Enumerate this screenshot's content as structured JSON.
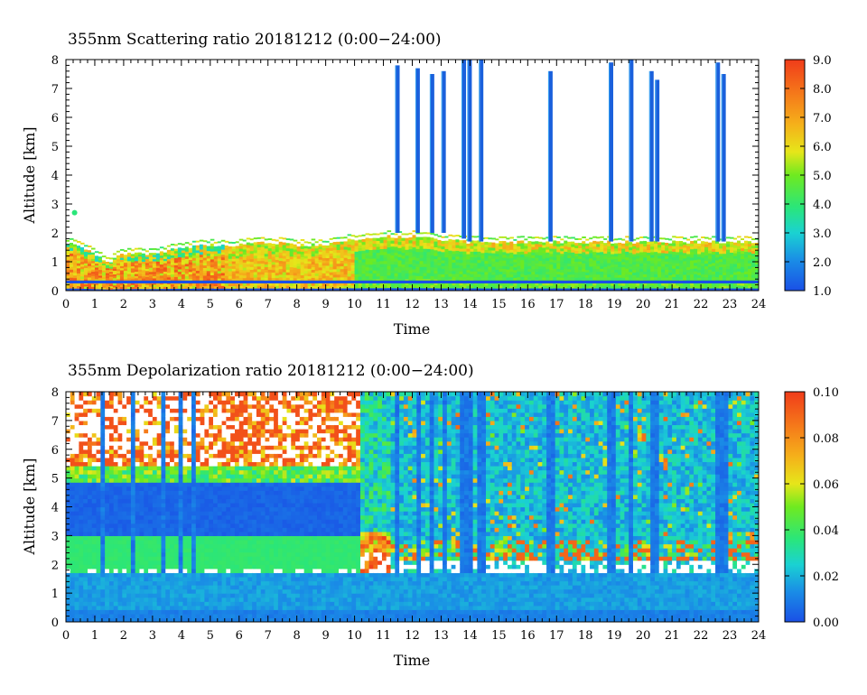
{
  "chart_data": [
    {
      "type": "heatmap",
      "title": "355nm Scattering ratio  20181212 (0:00−24:00)",
      "xlabel": "Time",
      "ylabel": "Altitude [km]",
      "xlim": [
        0,
        24
      ],
      "ylim": [
        0,
        8
      ],
      "x_ticks": [
        "0",
        "1",
        "2",
        "3",
        "4",
        "5",
        "6",
        "7",
        "8",
        "9",
        "10",
        "11",
        "12",
        "13",
        "14",
        "15",
        "16",
        "17",
        "18",
        "19",
        "20",
        "21",
        "22",
        "23",
        "24"
      ],
      "y_ticks": [
        "0",
        "1",
        "2",
        "3",
        "4",
        "5",
        "6",
        "7",
        "8"
      ],
      "colorbar": {
        "min": 1.0,
        "max": 9.0,
        "ticks": [
          "1.0",
          "2.0",
          "3.0",
          "4.0",
          "5.0",
          "6.0",
          "7.0",
          "8.0",
          "9.0"
        ]
      },
      "features": {
        "boundary_layer_top_km": [
          [
            0,
            1.7
          ],
          [
            1,
            1.3
          ],
          [
            1.5,
            1.0
          ],
          [
            2,
            1.3
          ],
          [
            3,
            1.3
          ],
          [
            4,
            1.5
          ],
          [
            5,
            1.6
          ],
          [
            6,
            1.6
          ],
          [
            7,
            1.7
          ],
          [
            8,
            1.6
          ],
          [
            9,
            1.6
          ],
          [
            10,
            1.8
          ],
          [
            11,
            1.9
          ],
          [
            12,
            1.9
          ],
          [
            13,
            1.8
          ],
          [
            14,
            1.7
          ],
          [
            15,
            1.7
          ],
          [
            16,
            1.7
          ],
          [
            17,
            1.7
          ],
          [
            18,
            1.7
          ],
          [
            19,
            1.7
          ],
          [
            20,
            1.7
          ],
          [
            21,
            1.7
          ],
          [
            22,
            1.7
          ],
          [
            23,
            1.7
          ],
          [
            24,
            1.7
          ]
        ],
        "cloud_columns": [
          {
            "time": 11.5,
            "bottom_km": 2.0,
            "top_km": 7.8
          },
          {
            "time": 12.2,
            "bottom_km": 2.0,
            "top_km": 7.7
          },
          {
            "time": 12.7,
            "bottom_km": 2.0,
            "top_km": 7.5
          },
          {
            "time": 13.1,
            "bottom_km": 2.0,
            "top_km": 7.6
          },
          {
            "time": 13.8,
            "bottom_km": 1.8,
            "top_km": 8.0
          },
          {
            "time": 14.0,
            "bottom_km": 1.7,
            "top_km": 8.0
          },
          {
            "time": 14.4,
            "bottom_km": 1.7,
            "top_km": 8.0
          },
          {
            "time": 16.8,
            "bottom_km": 1.7,
            "top_km": 7.6
          },
          {
            "time": 18.9,
            "bottom_km": 1.7,
            "top_km": 7.9
          },
          {
            "time": 19.6,
            "bottom_km": 1.7,
            "top_km": 8.0
          },
          {
            "time": 20.3,
            "bottom_km": 1.7,
            "top_km": 7.6
          },
          {
            "time": 20.5,
            "bottom_km": 1.7,
            "top_km": 7.3
          },
          {
            "time": 22.6,
            "bottom_km": 1.7,
            "top_km": 7.9
          },
          {
            "time": 22.8,
            "bottom_km": 1.7,
            "top_km": 7.5
          }
        ]
      }
    },
    {
      "type": "heatmap",
      "title": "355nm Depolarization ratio  20181212 (0:00−24:00)",
      "xlabel": "Time",
      "ylabel": "Altitude [km]",
      "xlim": [
        0,
        24
      ],
      "ylim": [
        0,
        8
      ],
      "x_ticks": [
        "0",
        "1",
        "2",
        "3",
        "4",
        "5",
        "6",
        "7",
        "8",
        "9",
        "10",
        "11",
        "12",
        "13",
        "14",
        "15",
        "16",
        "17",
        "18",
        "19",
        "20",
        "21",
        "22",
        "23",
        "24"
      ],
      "y_ticks": [
        "0",
        "1",
        "2",
        "3",
        "4",
        "5",
        "6",
        "7",
        "8"
      ],
      "colorbar": {
        "min": 0.0,
        "max": 0.1,
        "ticks": [
          "0.00",
          "0.02",
          "0.04",
          "0.06",
          "0.08",
          "0.10"
        ]
      },
      "features": {
        "high_depol_layer": {
          "time_range": [
            0,
            10
          ],
          "bottom_km": 1.3,
          "top_km": 3.0,
          "value": 0.04
        },
        "low_depol_band": {
          "time_range": [
            0,
            10
          ],
          "bottom_km": 3.0,
          "top_km": 4.8,
          "value": 0.0
        },
        "upper_noise_region": {
          "time_range": [
            0,
            11
          ],
          "bottom_km": 5.0,
          "top_km": 8.0,
          "value": 0.09
        },
        "lower_layer": {
          "time_range": [
            0,
            24
          ],
          "bottom_km": 0.0,
          "top_km": 1.7,
          "value": 0.015
        },
        "dark_blue_columns": [
          1.3,
          2.3,
          3.4,
          4.0,
          4.4,
          11.5,
          12.2,
          12.7,
          13.1,
          13.8,
          14.0,
          14.4,
          16.8,
          18.9,
          19.6,
          20.3,
          20.5,
          22.6,
          22.8
        ]
      }
    }
  ]
}
